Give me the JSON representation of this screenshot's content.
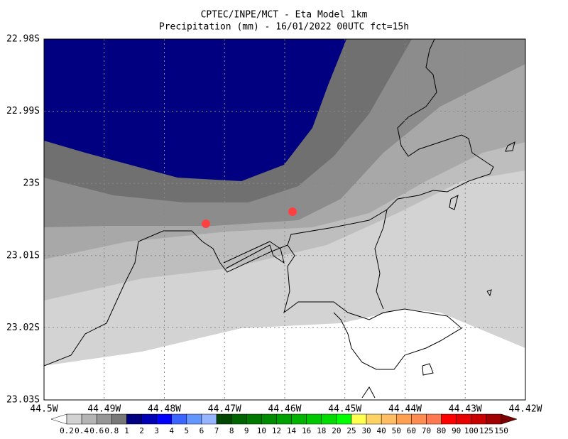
{
  "header": {
    "title": "CPTEC/INPE/MCT -  Eta Model 1km",
    "subtitle": "Precipitation (mm) - 16/01/2022 00UTC fct=15h"
  },
  "axes": {
    "y_labels": [
      "22.98S",
      "22.99S",
      "23S",
      "23.01S",
      "23.02S",
      "23.03S"
    ],
    "x_labels": [
      "44.5W",
      "44.49W",
      "44.48W",
      "44.47W",
      "44.46W",
      "44.45W",
      "44.44W",
      "44.43W",
      "44.42W"
    ]
  },
  "colorbar": {
    "labels": [
      "0.2",
      "0.4",
      "0.6",
      "0.8",
      "1",
      "2",
      "3",
      "4",
      "5",
      "6",
      "7",
      "8",
      "9",
      "10",
      "12",
      "14",
      "16",
      "18",
      "20",
      "25",
      "30",
      "40",
      "50",
      "60",
      "70",
      "80",
      "90",
      "100",
      "125",
      "150"
    ],
    "colors": [
      "#ffffff",
      "#d2d2d2",
      "#b4b4b4",
      "#969696",
      "#787878",
      "#000080",
      "#0000b4",
      "#0000ff",
      "#3c64ff",
      "#6496ff",
      "#96b4ff",
      "#004600",
      "#006400",
      "#007800",
      "#008c00",
      "#00a000",
      "#00b400",
      "#00c800",
      "#00dc00",
      "#00ff00",
      "#ffff50",
      "#ffd264",
      "#ffbe64",
      "#ffa050",
      "#ff8c50",
      "#ff7850",
      "#ff0000",
      "#e60000",
      "#c80000",
      "#a00000",
      "#780000"
    ]
  }
}
